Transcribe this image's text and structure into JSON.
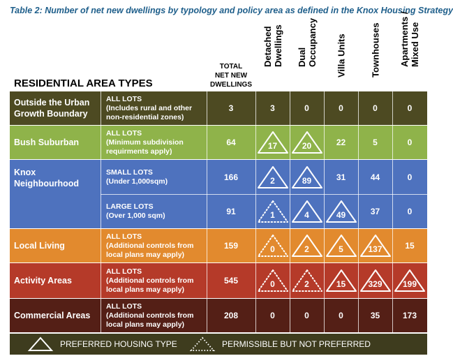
{
  "caption": "Table 2: Number of net new dwellings by typology and policy area as defined in the Knox Housing Strategy",
  "header": {
    "area_types": "RESIDENTIAL AREA TYPES",
    "total_line1": "TOTAL",
    "total_line2": "NET NEW",
    "total_line3": "DWELLINGS",
    "columns": [
      {
        "line1": "Detached",
        "line2": "Dwellings"
      },
      {
        "line1": "Dual",
        "line2": "Occupancy"
      },
      {
        "line1": "Villa Units",
        "line2": ""
      },
      {
        "line1": "Townhouses",
        "line2": ""
      },
      {
        "line1": "Apartments /",
        "line2": "Mixed Use"
      }
    ]
  },
  "rows": [
    {
      "name": "Outside the Urban Growth Boundary",
      "d1": "ALL LOTS",
      "d2": "(Includes rural and other",
      "d3": "non-residential zones)",
      "total": "3",
      "c0": "3",
      "c1": "0",
      "c2": "0",
      "c3": "0",
      "c4": "0"
    },
    {
      "name": "Bush Suburban",
      "d1": "ALL LOTS",
      "d2": "(Minimum subdivision",
      "d3": "requirments apply)",
      "total": "64",
      "c0": "17",
      "c1": "20",
      "c2": "22",
      "c3": "5",
      "c4": "0"
    },
    {
      "name": "Knox Neighbourhood",
      "d1": "SMALL LOTS",
      "d2": "(Under 1,000sqm)",
      "d3": "",
      "total": "166",
      "c0": "2",
      "c1": "89",
      "c2": "31",
      "c3": "44",
      "c4": "0"
    },
    {
      "name": "",
      "d1": "LARGE LOTS",
      "d2": "(Over 1,000 sqm)",
      "d3": "",
      "total": "91",
      "c0": "1",
      "c1": "4",
      "c2": "49",
      "c3": "37",
      "c4": "0"
    },
    {
      "name": "Local Living",
      "d1": "ALL LOTS",
      "d2": "(Additional controls from",
      "d3": "local plans may apply)",
      "total": "159",
      "c0": "0",
      "c1": "2",
      "c2": "5",
      "c3": "137",
      "c4": "15"
    },
    {
      "name": "Activity Areas",
      "d1": "ALL LOTS",
      "d2": "(Additional controls from",
      "d3": "local plans may apply)",
      "total": "545",
      "c0": "0",
      "c1": "2",
      "c2": "15",
      "c3": "329",
      "c4": "199"
    },
    {
      "name": "Commercial Areas",
      "d1": "ALL LOTS",
      "d2": "(Additional controls from",
      "d3": "local plans may apply)",
      "total": "208",
      "c0": "0",
      "c1": "0",
      "c2": "0",
      "c3": "35",
      "c4": "173"
    }
  ],
  "legend": {
    "preferred": "PREFERRED HOUSING TYPE",
    "permissible": "PERMISSIBLE BUT NOT PREFERRED"
  },
  "colors": {
    "caption": "#1F5F8B",
    "outside": "#4D4A22",
    "bush": "#8FB34A",
    "knox": "#4E72BE",
    "local": "#E28A2E",
    "activity": "#B53A29",
    "commercial": "#541F16",
    "legend": "#3E3C1E"
  }
}
